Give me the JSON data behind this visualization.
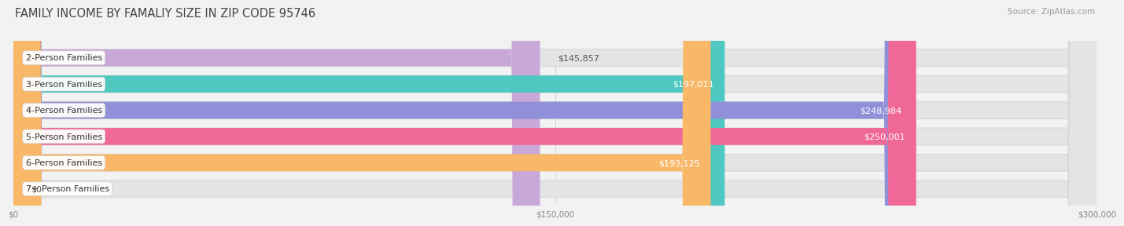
{
  "title": "FAMILY INCOME BY FAMALIY SIZE IN ZIP CODE 95746",
  "source": "Source: ZipAtlas.com",
  "categories": [
    "2-Person Families",
    "3-Person Families",
    "4-Person Families",
    "5-Person Families",
    "6-Person Families",
    "7+ Person Families"
  ],
  "values": [
    145857,
    197011,
    248984,
    250001,
    193125,
    0
  ],
  "bar_colors": [
    "#c8a8d8",
    "#4ec8c0",
    "#9090d8",
    "#f06898",
    "#f8b868",
    "#f0b0b8"
  ],
  "value_label_inside": [
    false,
    true,
    true,
    true,
    true,
    false
  ],
  "value_label_colors_inside": [
    "#666666",
    "#ffffff",
    "#ffffff",
    "#ffffff",
    "#ffffff",
    "#888888"
  ],
  "value_labels": [
    "$145,857",
    "$197,011",
    "$248,984",
    "$250,001",
    "$193,125",
    "$0"
  ],
  "xlim": [
    0,
    300000
  ],
  "xtick_values": [
    0,
    150000,
    300000
  ],
  "xtick_labels": [
    "$0",
    "$150,000",
    "$300,000"
  ],
  "background_color": "#f2f2f2",
  "bar_bg_color": "#e4e4e4",
  "bar_bg_border_color": "#d8d8d8",
  "title_fontsize": 10.5,
  "source_fontsize": 7.5,
  "bar_height": 0.65,
  "bar_label_fontsize": 8.0,
  "value_label_fontsize": 8.0
}
